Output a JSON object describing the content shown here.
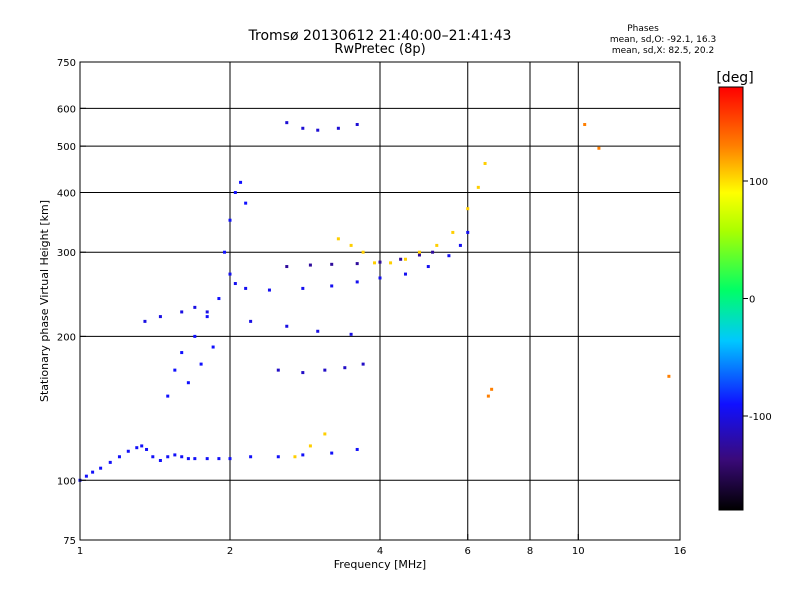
{
  "header": {
    "title": "Tromsø 20130612 21:40:00–21:41:43",
    "subtitle": "RwPretec (8p)"
  },
  "stats": {
    "heading": "Phases",
    "line_o": "mean, sd,O: -92.1, 16.3",
    "line_x": "mean, sd,X:  82.5, 20.2"
  },
  "colors": {
    "axis": "#000000",
    "grid": "#000000",
    "background": "#ffffff"
  },
  "chart_data": {
    "type": "scatter",
    "xlabel": "Frequency [MHz]",
    "ylabel": "Stationary phase Virtual Height [km]",
    "xscale": "log",
    "yscale": "log",
    "xlim": [
      1,
      16
    ],
    "ylim": [
      75,
      750
    ],
    "xticks": [
      1,
      2,
      4,
      6,
      8,
      10,
      16
    ],
    "yticks": [
      75,
      100,
      200,
      300,
      400,
      500,
      600,
      750
    ],
    "xgrid": [
      2,
      4,
      6,
      8,
      10
    ],
    "ygrid": [
      100,
      200,
      300,
      400,
      500,
      600
    ],
    "grid": true,
    "colorbar": {
      "label": "[deg]",
      "range": [
        -180,
        180
      ],
      "ticks": [
        100,
        0,
        -100
      ]
    },
    "series": [
      {
        "phase": -92,
        "points": [
          [
            1.0,
            100
          ],
          [
            1.03,
            102
          ],
          [
            1.06,
            104
          ],
          [
            1.1,
            106
          ],
          [
            1.15,
            109
          ],
          [
            1.2,
            112
          ],
          [
            1.25,
            115
          ],
          [
            1.3,
            117
          ],
          [
            1.33,
            118
          ],
          [
            1.36,
            116
          ],
          [
            1.4,
            112
          ],
          [
            1.45,
            110
          ],
          [
            1.5,
            112
          ],
          [
            1.55,
            113
          ],
          [
            1.6,
            112
          ],
          [
            1.65,
            111
          ],
          [
            1.7,
            111
          ],
          [
            1.8,
            111
          ],
          [
            1.9,
            111
          ],
          [
            2.0,
            111
          ],
          [
            2.2,
            112
          ],
          [
            2.5,
            112
          ],
          [
            2.8,
            113
          ],
          [
            3.2,
            114
          ],
          [
            3.6,
            116
          ]
        ]
      },
      {
        "phase": -95,
        "points": [
          [
            2.0,
            270
          ],
          [
            2.05,
            258
          ],
          [
            2.15,
            252
          ],
          [
            2.4,
            250
          ],
          [
            2.8,
            252
          ],
          [
            3.2,
            255
          ],
          [
            3.6,
            260
          ],
          [
            4.0,
            265
          ],
          [
            4.5,
            270
          ],
          [
            5.0,
            280
          ],
          [
            5.5,
            295
          ],
          [
            5.8,
            310
          ],
          [
            6.0,
            330
          ]
        ]
      },
      {
        "phase": -125,
        "points": [
          [
            2.6,
            280
          ],
          [
            2.9,
            282
          ],
          [
            3.2,
            283
          ],
          [
            3.6,
            284
          ],
          [
            4.0,
            286
          ],
          [
            4.4,
            290
          ],
          [
            4.8,
            296
          ],
          [
            5.1,
            300
          ]
        ]
      },
      {
        "phase": -90,
        "points": [
          [
            1.5,
            150
          ],
          [
            1.55,
            170
          ],
          [
            1.6,
            185
          ],
          [
            1.65,
            160
          ],
          [
            1.7,
            200
          ],
          [
            1.75,
            175
          ],
          [
            1.8,
            220
          ],
          [
            1.85,
            190
          ],
          [
            1.9,
            240
          ],
          [
            1.95,
            300
          ],
          [
            2.0,
            350
          ],
          [
            2.05,
            400
          ],
          [
            2.1,
            420
          ],
          [
            2.15,
            380
          ]
        ]
      },
      {
        "phase": -100,
        "points": [
          [
            1.35,
            215
          ],
          [
            1.45,
            220
          ],
          [
            1.6,
            225
          ],
          [
            1.7,
            230
          ],
          [
            1.8,
            225
          ],
          [
            2.2,
            215
          ],
          [
            2.6,
            210
          ],
          [
            3.0,
            205
          ],
          [
            3.5,
            202
          ]
        ]
      },
      {
        "phase": -110,
        "points": [
          [
            2.5,
            170
          ],
          [
            2.8,
            168
          ],
          [
            3.1,
            170
          ],
          [
            3.4,
            172
          ],
          [
            3.7,
            175
          ]
        ]
      },
      {
        "phase": -105,
        "points": [
          [
            2.6,
            560
          ],
          [
            2.8,
            545
          ],
          [
            3.0,
            540
          ],
          [
            3.3,
            545
          ],
          [
            3.6,
            555
          ]
        ]
      },
      {
        "phase": 105,
        "points": [
          [
            2.7,
            112
          ],
          [
            2.9,
            118
          ],
          [
            3.1,
            125
          ],
          [
            3.3,
            320
          ],
          [
            3.5,
            310
          ],
          [
            3.7,
            300
          ],
          [
            3.9,
            285
          ],
          [
            4.2,
            285
          ],
          [
            4.5,
            290
          ],
          [
            4.8,
            300
          ],
          [
            5.2,
            310
          ],
          [
            5.6,
            330
          ],
          [
            6.0,
            370
          ],
          [
            6.3,
            410
          ],
          [
            6.5,
            460
          ]
        ]
      },
      {
        "phase": 130,
        "points": [
          [
            6.6,
            150
          ],
          [
            6.7,
            155
          ],
          [
            10.3,
            555
          ],
          [
            11.0,
            495
          ],
          [
            15.2,
            165
          ]
        ]
      }
    ]
  }
}
